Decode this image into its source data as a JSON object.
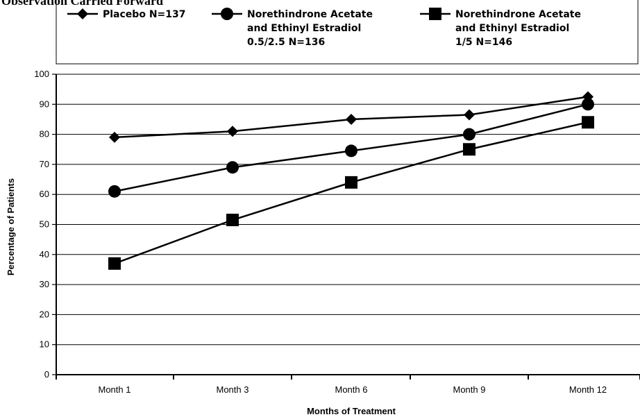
{
  "header": {
    "partial_title": "Observation Carried Forward"
  },
  "legend": {
    "entries": [
      {
        "marker": "diamond",
        "lines": [
          "Placebo N=137"
        ]
      },
      {
        "marker": "circle",
        "lines": [
          "Norethindrone Acetate",
          "and Ethinyl Estradiol",
          "0.5/2.5 N=136"
        ]
      },
      {
        "marker": "square",
        "lines": [
          "Norethindrone Acetate",
          "and Ethinyl Estradiol",
          "1/5 N=146"
        ]
      }
    ]
  },
  "chart_data": {
    "type": "line",
    "title": "",
    "xlabel": "Months of Treatment",
    "ylabel": "Percentage of Patients",
    "categories": [
      "Month 1",
      "Month 3",
      "Month 6",
      "Month 9",
      "Month 12"
    ],
    "ylim": [
      0,
      100
    ],
    "yticks": [
      0,
      10,
      20,
      30,
      40,
      50,
      60,
      70,
      80,
      90,
      100
    ],
    "grid": "horizontal",
    "legend_position": "top",
    "series": [
      {
        "name": "Placebo N=137",
        "marker": "diamond",
        "values": [
          79,
          81,
          85,
          86.5,
          92.5
        ]
      },
      {
        "name": "Norethindrone Acetate and Ethinyl Estradiol 0.5/2.5 N=136",
        "marker": "circle",
        "values": [
          61,
          69,
          74.5,
          80,
          90
        ]
      },
      {
        "name": "Norethindrone Acetate and Ethinyl Estradiol 1/5 N=146",
        "marker": "square",
        "values": [
          37,
          51.5,
          64,
          75,
          84
        ]
      }
    ]
  }
}
